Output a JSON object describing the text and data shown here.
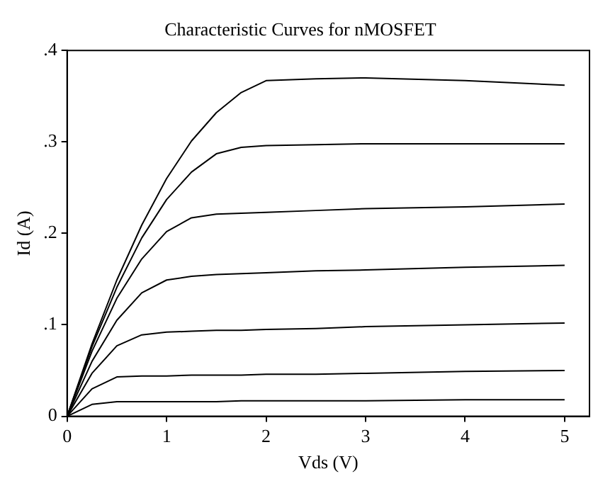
{
  "chart_data": {
    "type": "line",
    "title": "Characteristic Curves for nMOSFET",
    "xlabel": "Vds (V)",
    "ylabel": "Id (A)",
    "x": [
      0,
      0.25,
      0.5,
      0.75,
      1,
      1.25,
      1.5,
      1.75,
      2,
      2.5,
      3,
      4,
      5
    ],
    "series": [
      {
        "color": "#000000",
        "values": [
          0,
          0.013,
          0.016,
          0.016,
          0.016,
          0.016,
          0.016,
          0.017,
          0.017,
          0.017,
          0.017,
          0.018,
          0.018
        ]
      },
      {
        "color": "#000000",
        "values": [
          0,
          0.03,
          0.043,
          0.044,
          0.044,
          0.045,
          0.045,
          0.045,
          0.046,
          0.046,
          0.047,
          0.049,
          0.05
        ]
      },
      {
        "color": "#000000",
        "values": [
          0,
          0.047,
          0.077,
          0.089,
          0.092,
          0.093,
          0.094,
          0.094,
          0.095,
          0.096,
          0.098,
          0.1,
          0.102
        ]
      },
      {
        "color": "#000000",
        "values": [
          0,
          0.06,
          0.105,
          0.135,
          0.149,
          0.153,
          0.155,
          0.156,
          0.157,
          0.159,
          0.16,
          0.163,
          0.165
        ]
      },
      {
        "color": "#000000",
        "values": [
          0,
          0.071,
          0.129,
          0.172,
          0.202,
          0.217,
          0.221,
          0.222,
          0.223,
          0.225,
          0.227,
          0.229,
          0.232
        ]
      },
      {
        "color": "#000000",
        "values": [
          0,
          0.076,
          0.141,
          0.195,
          0.237,
          0.267,
          0.287,
          0.294,
          0.296,
          0.297,
          0.298,
          0.298,
          0.298
        ]
      },
      {
        "color": "#000000",
        "values": [
          0,
          0.079,
          0.149,
          0.209,
          0.26,
          0.301,
          0.332,
          0.354,
          0.367,
          0.369,
          0.37,
          0.367,
          0.362
        ]
      }
    ],
    "xlim": [
      0,
      5.25
    ],
    "xticks": [
      0,
      1,
      2,
      3,
      4,
      5
    ],
    "ylim": [
      0,
      0.4
    ],
    "yticks": [
      0,
      {
        "value": 0.1,
        "label": ".1"
      },
      {
        "value": 0.2,
        "label": ".2"
      },
      {
        "value": 0.3,
        "label": ".3"
      },
      {
        "value": 0.4,
        "label": ".4"
      }
    ],
    "grid": false,
    "legend": false,
    "marker": "none",
    "line_style": "solid"
  }
}
